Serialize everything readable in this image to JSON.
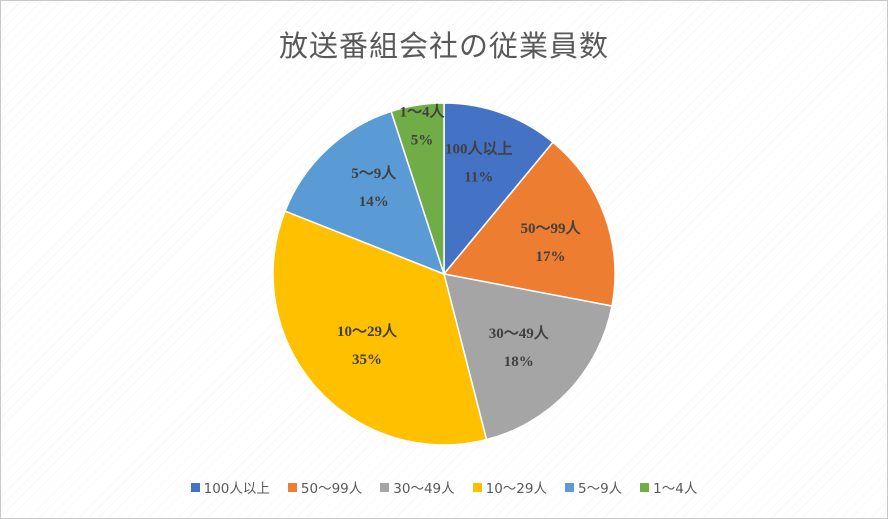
{
  "chart_data": {
    "type": "pie",
    "title": "放送番組会社の従業員数",
    "categories": [
      "100人以上",
      "50～99人",
      "30～49人",
      "10～29人",
      "5～9人",
      "1～4人"
    ],
    "values": [
      11,
      17,
      18,
      35,
      14,
      5
    ],
    "percent_labels": [
      "11%",
      "17%",
      "18%",
      "35%",
      "14%",
      "5%"
    ],
    "colors": [
      "#4472C4",
      "#ED7D31",
      "#A5A5A5",
      "#FFC000",
      "#5B9BD5",
      "#70AD47"
    ],
    "legend_position": "bottom",
    "data_labels": "category and percentage"
  }
}
